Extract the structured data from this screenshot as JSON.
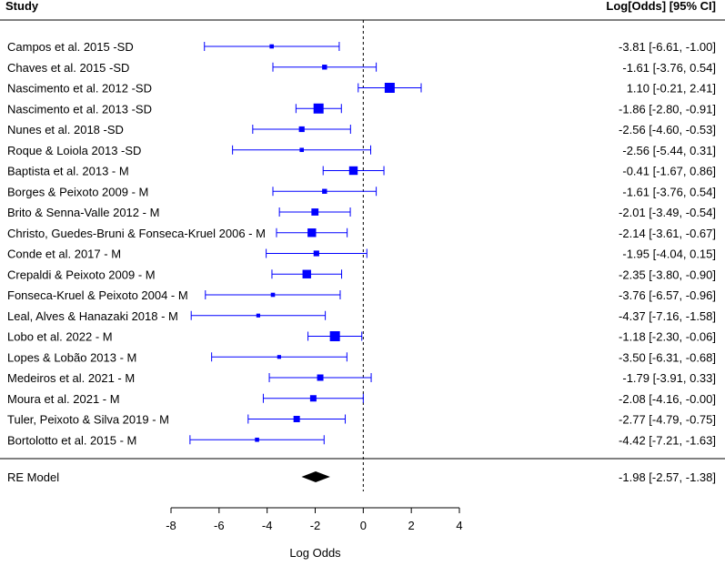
{
  "header": {
    "study_label": "Study",
    "estimate_label": "Log[Odds] [95% CI]"
  },
  "colors": {
    "point": "#0000ff",
    "diamond": "#000000",
    "axis": "#000000"
  },
  "chart_data": {
    "type": "forest",
    "xlabel": "Log Odds",
    "xlim": [
      -8,
      4
    ],
    "xticks": [
      -8,
      -6,
      -4,
      -2,
      0,
      2,
      4
    ],
    "reference_line": 0,
    "studies": [
      {
        "name": "Campos et al. 2015 -SD",
        "estimate": -3.81,
        "lower": -6.61,
        "upper": -1.0,
        "weight": 0.2,
        "ci_text": "-3.81 [-6.61, -1.00]"
      },
      {
        "name": "Chaves et al. 2015 -SD",
        "estimate": -1.61,
        "lower": -3.76,
        "upper": 0.54,
        "weight": 0.3,
        "ci_text": "-1.61 [-3.76,  0.54]"
      },
      {
        "name": "Nascimento et al. 2012 -SD",
        "estimate": 1.1,
        "lower": -0.21,
        "upper": 2.41,
        "weight": 1.0,
        "ci_text": "1.10 [-0.21,  2.41]"
      },
      {
        "name": "Nascimento et al. 2013 -SD",
        "estimate": -1.86,
        "lower": -2.8,
        "upper": -0.91,
        "weight": 1.0,
        "ci_text": "-1.86 [-2.80, -0.91]"
      },
      {
        "name": "Nunes et al. 2018 -SD",
        "estimate": -2.56,
        "lower": -4.6,
        "upper": -0.53,
        "weight": 0.4,
        "ci_text": "-2.56 [-4.60, -0.53]"
      },
      {
        "name": "Roque & Loiola 2013 -SD",
        "estimate": -2.56,
        "lower": -5.44,
        "upper": 0.31,
        "weight": 0.2,
        "ci_text": "-2.56 [-5.44,  0.31]"
      },
      {
        "name": "Baptista et al. 2013 - M",
        "estimate": -0.41,
        "lower": -1.67,
        "upper": 0.86,
        "weight": 0.8,
        "ci_text": "-0.41 [-1.67,  0.86]"
      },
      {
        "name": "Borges & Peixoto 2009 - M",
        "estimate": -1.61,
        "lower": -3.76,
        "upper": 0.54,
        "weight": 0.3,
        "ci_text": "-1.61 [-3.76,  0.54]"
      },
      {
        "name": "Brito & Senna-Valle 2012 - M",
        "estimate": -2.01,
        "lower": -3.49,
        "upper": -0.54,
        "weight": 0.6,
        "ci_text": "-2.01 [-3.49, -0.54]"
      },
      {
        "name": "Christo, Guedes-Bruni & Fonseca-Kruel 2006 - M",
        "estimate": -2.14,
        "lower": -3.61,
        "upper": -0.67,
        "weight": 0.8,
        "ci_text": "-2.14 [-3.61, -0.67]"
      },
      {
        "name": "Conde et al. 2017 - M",
        "estimate": -1.95,
        "lower": -4.04,
        "upper": 0.15,
        "weight": 0.4,
        "ci_text": "-1.95 [-4.04,  0.15]"
      },
      {
        "name": "Crepaldi & Peixoto 2009 - M",
        "estimate": -2.35,
        "lower": -3.8,
        "upper": -0.9,
        "weight": 0.8,
        "ci_text": "-2.35 [-3.80, -0.90]"
      },
      {
        "name": "Fonseca-Kruel & Peixoto 2004 - M",
        "estimate": -3.76,
        "lower": -6.57,
        "upper": -0.96,
        "weight": 0.2,
        "ci_text": "-3.76 [-6.57, -0.96]"
      },
      {
        "name": "Leal, Alves & Hanazaki 2018 - M",
        "estimate": -4.37,
        "lower": -7.16,
        "upper": -1.58,
        "weight": 0.15,
        "ci_text": "-4.37 [-7.16, -1.58]"
      },
      {
        "name": "Lobo et al. 2022 - M",
        "estimate": -1.18,
        "lower": -2.3,
        "upper": -0.06,
        "weight": 1.0,
        "ci_text": "-1.18 [-2.30, -0.06]"
      },
      {
        "name": "Lopes & Lobão 2013 - M",
        "estimate": -3.5,
        "lower": -6.31,
        "upper": -0.68,
        "weight": 0.15,
        "ci_text": "-3.50 [-6.31, -0.68]"
      },
      {
        "name": "Medeiros et al. 2021 - M",
        "estimate": -1.79,
        "lower": -3.91,
        "upper": 0.33,
        "weight": 0.5,
        "ci_text": "-1.79 [-3.91,  0.33]"
      },
      {
        "name": "Moura et al. 2021 - M",
        "estimate": -2.08,
        "lower": -4.16,
        "upper": -0.0,
        "weight": 0.5,
        "ci_text": "-2.08 [-4.16, -0.00]"
      },
      {
        "name": "Tuler, Peixoto & Silva 2019 - M",
        "estimate": -2.77,
        "lower": -4.79,
        "upper": -0.75,
        "weight": 0.5,
        "ci_text": "-2.77 [-4.79, -0.75]"
      },
      {
        "name": "Bortolotto et al. 2015 - M",
        "estimate": -4.42,
        "lower": -7.21,
        "upper": -1.63,
        "weight": 0.2,
        "ci_text": "-4.42 [-7.21, -1.63]"
      }
    ],
    "summary": {
      "name": "RE Model",
      "estimate": -1.98,
      "lower": -2.57,
      "upper": -1.38,
      "ci_text": "-1.98 [-2.57, -1.38]"
    }
  }
}
